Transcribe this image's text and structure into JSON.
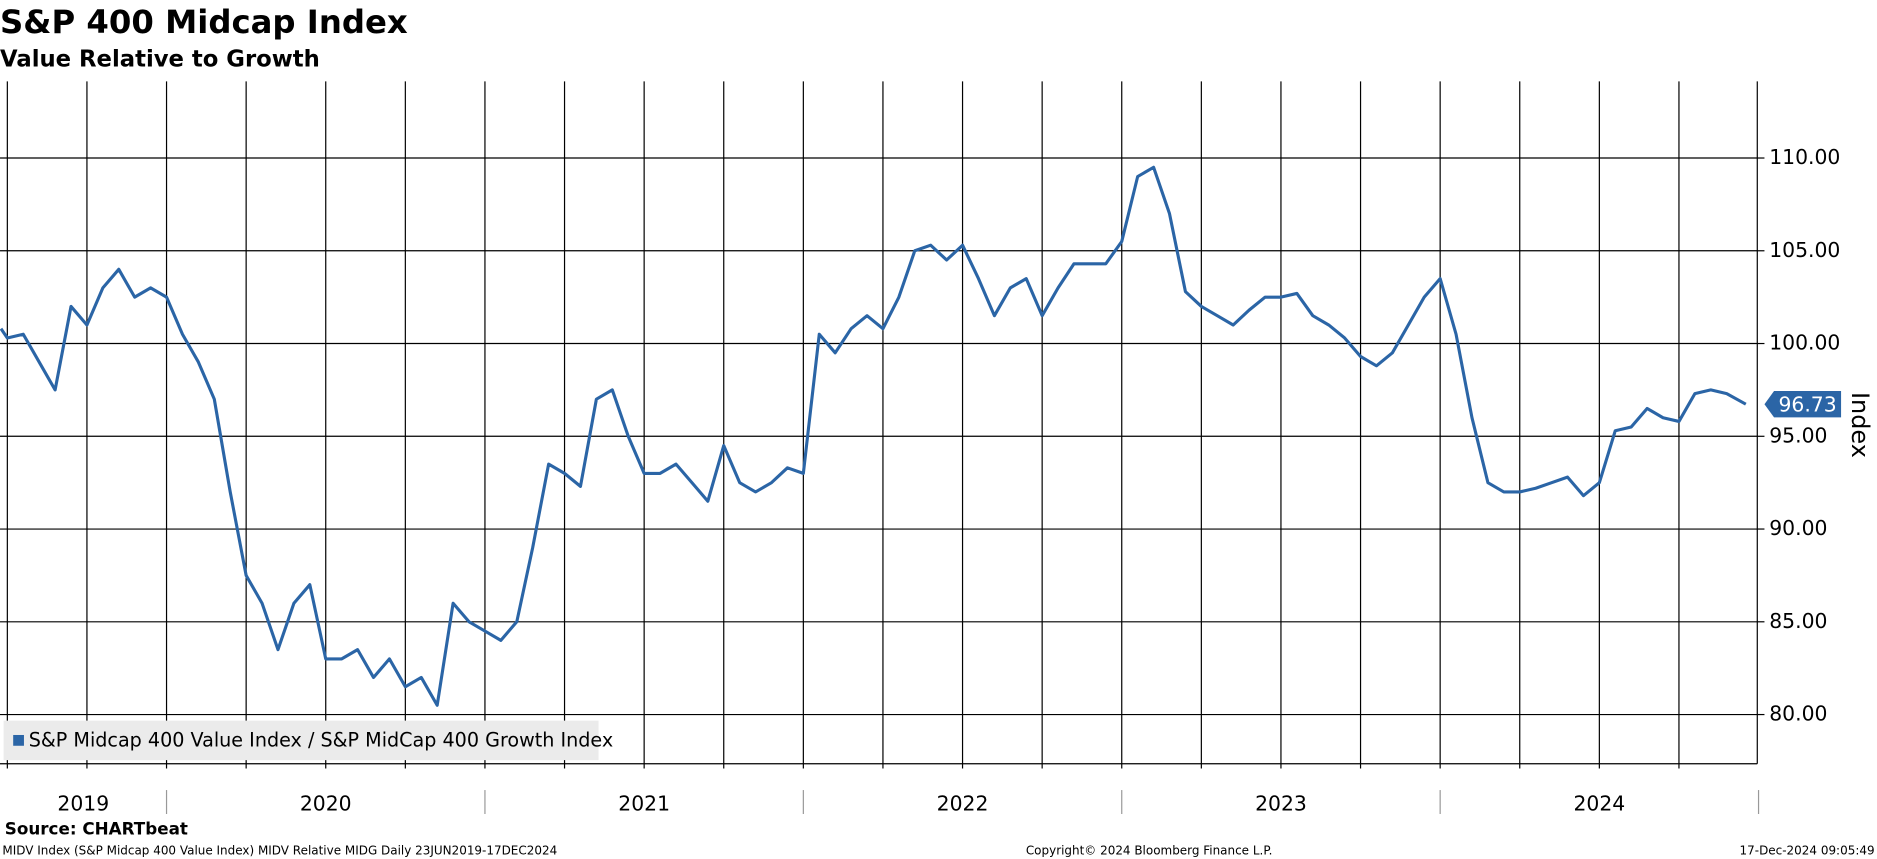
{
  "chart_data": {
    "type": "line",
    "title": "S&P 400 Midcap Index",
    "subtitle": "Value Relative to Growth",
    "y_axis_label": "Index",
    "source": "Source: CHARTbeat",
    "footer_left": "MIDV Index (S&P Midcap 400 Value Index) MIDV Relative MIDG  Daily 23JUN2019-17DEC2024",
    "footer_center": "Copyright© 2024 Bloomberg Finance L.P.",
    "footer_right": "17-Dec-2024 09:05:49",
    "legend_position": "lower left",
    "grid": true,
    "xlim": [
      2019.477,
      2024.996
    ],
    "ylim": [
      77.35,
      114.13
    ],
    "yticks": [
      {
        "value": 80,
        "label": "80.00"
      },
      {
        "value": 85,
        "label": "85.00"
      },
      {
        "value": 90,
        "label": "90.00"
      },
      {
        "value": 95,
        "label": "95.00"
      },
      {
        "value": 100,
        "label": "100.00"
      },
      {
        "value": 105,
        "label": "105.00"
      },
      {
        "value": 110,
        "label": "110.00"
      }
    ],
    "xgrid": [
      2019.5,
      2019.75,
      2020,
      2020.25,
      2020.5,
      2020.75,
      2021,
      2021.25,
      2021.5,
      2021.75,
      2022,
      2022.25,
      2022.5,
      2022.75,
      2023,
      2023.25,
      2023.5,
      2023.75,
      2024,
      2024.25,
      2024.5,
      2024.75
    ],
    "year_dividers": [
      2020,
      2021,
      2022,
      2023,
      2024,
      2025
    ],
    "year_labels": [
      "2019",
      "2020",
      "2021",
      "2022",
      "2023",
      "2024"
    ],
    "x": [
      2019.48,
      2019.5,
      2019.55,
      2019.6,
      2019.65,
      2019.7,
      2019.75,
      2019.8,
      2019.85,
      2019.9,
      2019.95,
      2020,
      2020.05,
      2020.1,
      2020.15,
      2020.2,
      2020.25,
      2020.3,
      2020.35,
      2020.4,
      2020.45,
      2020.5,
      2020.55,
      2020.6,
      2020.65,
      2020.7,
      2020.75,
      2020.8,
      2020.85,
      2020.9,
      2020.95,
      2021,
      2021.05,
      2021.1,
      2021.15,
      2021.2,
      2021.25,
      2021.3,
      2021.35,
      2021.4,
      2021.45,
      2021.5,
      2021.55,
      2021.6,
      2021.65,
      2021.7,
      2021.75,
      2021.8,
      2021.85,
      2021.9,
      2021.95,
      2022,
      2022.05,
      2022.1,
      2022.15,
      2022.2,
      2022.25,
      2022.3,
      2022.35,
      2022.4,
      2022.45,
      2022.5,
      2022.55,
      2022.6,
      2022.65,
      2022.7,
      2022.75,
      2022.8,
      2022.85,
      2022.9,
      2022.95,
      2023,
      2023.05,
      2023.1,
      2023.15,
      2023.2,
      2023.25,
      2023.3,
      2023.35,
      2023.4,
      2023.45,
      2023.5,
      2023.55,
      2023.6,
      2023.65,
      2023.7,
      2023.75,
      2023.8,
      2023.85,
      2023.9,
      2023.95,
      2024,
      2024.05,
      2024.1,
      2024.15,
      2024.2,
      2024.25,
      2024.3,
      2024.35,
      2024.4,
      2024.45,
      2024.5,
      2024.55,
      2024.6,
      2024.65,
      2024.7,
      2024.75,
      2024.8,
      2024.85,
      2024.9,
      2024.96
    ],
    "series": [
      {
        "name": "S&P Midcap 400 Value Index / S&P MidCap 400 Growth Index",
        "color": "#2b65a6",
        "values": [
          100.8,
          100.3,
          100.5,
          99,
          97.5,
          102,
          101,
          103,
          104,
          102.5,
          103,
          102.5,
          100.5,
          99,
          97,
          92,
          87.5,
          86,
          83.5,
          86,
          87,
          83,
          83,
          83.5,
          82,
          83,
          81.5,
          82,
          80.5,
          86,
          85,
          84.5,
          84,
          85,
          89,
          93.5,
          93,
          92.3,
          97,
          97.5,
          95,
          93,
          93,
          93.5,
          92.5,
          91.5,
          94.5,
          92.5,
          92,
          92.5,
          93.3,
          93,
          100.5,
          99.5,
          100.8,
          101.5,
          100.8,
          102.5,
          105,
          105.3,
          104.5,
          105.3,
          103.5,
          101.5,
          103,
          103.5,
          101.5,
          103,
          104.3,
          104.3,
          104.3,
          105.5,
          109,
          109.5,
          107,
          102.8,
          102,
          101.5,
          101,
          101.8,
          102.5,
          102.5,
          102.7,
          101.5,
          101,
          100.3,
          99.3,
          98.8,
          99.5,
          101,
          102.5,
          103.5,
          100.5,
          96,
          92.5,
          92,
          92,
          92.2,
          92.5,
          92.8,
          91.8,
          92.5,
          95.3,
          95.5,
          96.5,
          96,
          95.8,
          97.3,
          97.5,
          97.3,
          96.73
        ]
      }
    ]
  }
}
